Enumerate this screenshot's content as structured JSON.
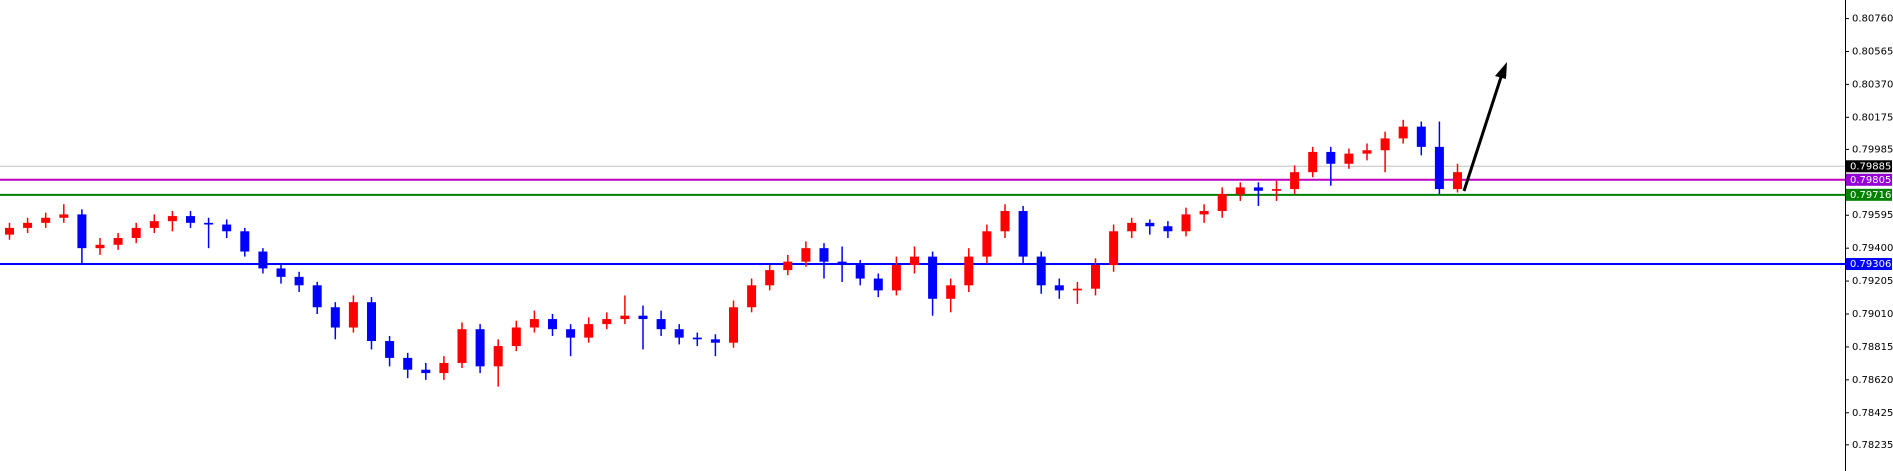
{
  "chart_data": {
    "type": "candlestick",
    "up_color": "#ff0000",
    "down_color": "#0000ff",
    "grid": false,
    "ylim": [
      0.7808,
      0.8087
    ],
    "yticks": [
      {
        "value": 0.8076,
        "label": "0.80760"
      },
      0.80565,
      {
        "value": 0.8037,
        "label": "0.80370"
      },
      0.80175,
      0.79985,
      0.79595,
      {
        "value": 0.794,
        "label": "0.79400"
      },
      0.79205,
      {
        "value": 0.7901,
        "label": "0.79010"
      },
      0.78815,
      {
        "value": 0.7862,
        "label": "0.78620"
      },
      0.78425,
      0.78235
    ],
    "levels": [
      {
        "value": 0.79885,
        "color": "#c0c0c0",
        "label_color": "#000000"
      },
      {
        "value": 0.79805,
        "color": "#c000c0",
        "label_color": "#9400d3"
      },
      {
        "value": 0.79716,
        "color": "#008000",
        "label_color": "#008000"
      },
      {
        "value": 0.79306,
        "color": "#0000ff",
        "label_color": "#0000ff"
      }
    ],
    "open": [
      0.7948,
      0.7952,
      0.7955,
      0.7958,
      0.796,
      0.794,
      0.7942,
      0.7946,
      0.7952,
      0.7956,
      0.7959,
      0.7955,
      0.7954,
      0.795,
      0.7938,
      0.7928,
      0.7923,
      0.7918,
      0.7905,
      0.7893,
      0.7908,
      0.7885,
      0.7875,
      0.7868,
      0.7866,
      0.7872,
      0.7892,
      0.787,
      0.7882,
      0.7893,
      0.7898,
      0.7892,
      0.7887,
      0.7895,
      0.7898,
      0.79,
      0.7898,
      0.7892,
      0.7887,
      0.7886,
      0.7884,
      0.7905,
      0.7918,
      0.7927,
      0.7932,
      0.794,
      0.7932,
      0.793,
      0.7922,
      0.7915,
      0.793,
      0.7935,
      0.791,
      0.7918,
      0.7935,
      0.795,
      0.7962,
      0.7935,
      0.7918,
      0.7915,
      0.7916,
      0.793,
      0.795,
      0.7955,
      0.7953,
      0.795,
      0.796,
      0.7962,
      0.7972,
      0.7976,
      0.7974,
      0.7975,
      0.7985,
      0.7997,
      0.799,
      0.7996,
      0.7998,
      0.8005,
      0.8012,
      0.8,
      0.7975
    ],
    "high": [
      0.7955,
      0.7958,
      0.7961,
      0.7966,
      0.7963,
      0.7946,
      0.7949,
      0.7955,
      0.796,
      0.7962,
      0.7962,
      0.7958,
      0.7957,
      0.7952,
      0.794,
      0.7931,
      0.7926,
      0.792,
      0.7908,
      0.7912,
      0.7911,
      0.7888,
      0.7878,
      0.7872,
      0.7876,
      0.7896,
      0.7895,
      0.7886,
      0.7897,
      0.7903,
      0.7901,
      0.7895,
      0.7899,
      0.7902,
      0.7912,
      0.7906,
      0.7903,
      0.7895,
      0.789,
      0.7889,
      0.7909,
      0.7922,
      0.793,
      0.7936,
      0.7944,
      0.7943,
      0.7941,
      0.7933,
      0.7925,
      0.7935,
      0.7941,
      0.7938,
      0.7922,
      0.794,
      0.7954,
      0.7966,
      0.7965,
      0.7938,
      0.7922,
      0.792,
      0.7934,
      0.7954,
      0.7958,
      0.7957,
      0.7956,
      0.7964,
      0.7966,
      0.7976,
      0.7979,
      0.7979,
      0.798,
      0.7989,
      0.8,
      0.8,
      0.7999,
      0.8002,
      0.8009,
      0.8016,
      0.8015,
      0.8015,
      0.799
    ],
    "low": [
      0.7945,
      0.7949,
      0.7952,
      0.7955,
      0.793,
      0.7936,
      0.7939,
      0.7943,
      0.7949,
      0.795,
      0.7952,
      0.794,
      0.7946,
      0.7935,
      0.7925,
      0.7919,
      0.7914,
      0.7901,
      0.7886,
      0.789,
      0.788,
      0.787,
      0.7863,
      0.7862,
      0.7862,
      0.7869,
      0.7866,
      0.7858,
      0.7879,
      0.789,
      0.7888,
      0.7876,
      0.7884,
      0.7892,
      0.7895,
      0.788,
      0.7888,
      0.7883,
      0.7882,
      0.7876,
      0.7881,
      0.7902,
      0.7915,
      0.7924,
      0.7929,
      0.7922,
      0.792,
      0.7918,
      0.7911,
      0.7912,
      0.7925,
      0.79,
      0.7902,
      0.7914,
      0.7931,
      0.7946,
      0.793,
      0.7913,
      0.791,
      0.7907,
      0.7912,
      0.7926,
      0.7946,
      0.7948,
      0.7946,
      0.7947,
      0.7955,
      0.7958,
      0.7968,
      0.7965,
      0.7968,
      0.7972,
      0.7982,
      0.7977,
      0.7987,
      0.7992,
      0.7985,
      0.8002,
      0.7995,
      0.7972,
      0.7973
    ],
    "close": [
      0.7952,
      0.7955,
      0.7958,
      0.796,
      0.794,
      0.7942,
      0.7946,
      0.7952,
      0.7956,
      0.7959,
      0.7955,
      0.7954,
      0.795,
      0.7938,
      0.7928,
      0.7923,
      0.7918,
      0.7905,
      0.7893,
      0.7908,
      0.7885,
      0.7875,
      0.7868,
      0.7866,
      0.7872,
      0.7892,
      0.787,
      0.7882,
      0.7893,
      0.7898,
      0.7892,
      0.7887,
      0.7895,
      0.7898,
      0.79,
      0.7898,
      0.7892,
      0.7887,
      0.7886,
      0.7884,
      0.7905,
      0.7918,
      0.7927,
      0.7932,
      0.794,
      0.7932,
      0.793,
      0.7922,
      0.7915,
      0.793,
      0.7935,
      0.791,
      0.7918,
      0.7935,
      0.795,
      0.7962,
      0.7935,
      0.7918,
      0.7915,
      0.7916,
      0.793,
      0.795,
      0.7955,
      0.7953,
      0.795,
      0.796,
      0.7962,
      0.7972,
      0.7976,
      0.7974,
      0.7975,
      0.7985,
      0.7997,
      0.799,
      0.7996,
      0.7998,
      0.8005,
      0.8012,
      0.8,
      0.7975,
      0.7985
    ]
  }
}
